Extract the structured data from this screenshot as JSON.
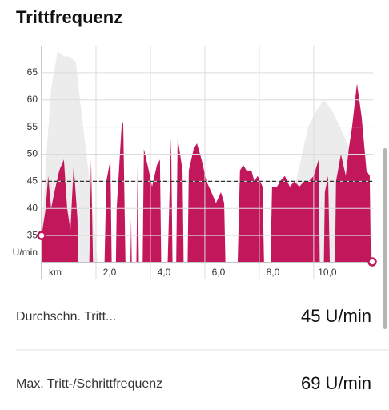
{
  "chart_data": {
    "type": "area",
    "title": "Trittfrequenz",
    "y_unit": "U/min",
    "average": 45,
    "xlim": [
      0,
      12.18
    ],
    "ylim": [
      30,
      70
    ],
    "xticks": [
      {
        "value": 0,
        "label": "km"
      },
      {
        "value": 2,
        "label": "2,0"
      },
      {
        "value": 4,
        "label": "4,0"
      },
      {
        "value": 6,
        "label": "6,0"
      },
      {
        "value": 8,
        "label": "8,0"
      },
      {
        "value": 10,
        "label": "10,0"
      }
    ],
    "yticks": [
      35,
      40,
      45,
      50,
      55,
      60,
      65
    ],
    "grid": true,
    "series": [
      {
        "color": "#ececec",
        "x": [
          0,
          0.18,
          0.35,
          0.59,
          0.82,
          1.0,
          1.26,
          1.41,
          1.65,
          1.88,
          2.06,
          8.91,
          9.35,
          9.79,
          10.09,
          10.38,
          10.68,
          10.97,
          11.41,
          11.94,
          12.18
        ],
        "values": [
          35,
          50,
          62,
          69,
          68,
          68,
          67,
          60,
          50,
          40,
          30,
          30,
          45,
          55,
          58,
          60,
          58,
          55,
          50,
          45,
          30
        ]
      },
      {
        "color": "#c2185b",
        "x": [
          0,
          0.15,
          0.24,
          0.35,
          0.47,
          0.65,
          0.82,
          0.94,
          1.06,
          1.18,
          1.32,
          1.41,
          1.65,
          1.82,
          2.0,
          2.18,
          2.38,
          2.53,
          2.65,
          2.76,
          2.94,
          3.0,
          3.18,
          3.29,
          3.41,
          3.53,
          3.65,
          3.76,
          3.94,
          4.06,
          4.24,
          4.35,
          4.47,
          4.76,
          4.88,
          5.0,
          5.18,
          5.29,
          5.41,
          5.59,
          5.71,
          5.88,
          6.06,
          6.24,
          6.41,
          6.59,
          6.71,
          6.88,
          7.06,
          7.29,
          7.41,
          7.53,
          7.71,
          7.82,
          7.94,
          8.12,
          8.29,
          8.47,
          8.65,
          8.76,
          8.94,
          9.12,
          9.29,
          9.47,
          9.65,
          9.82,
          10.0,
          10.18,
          10.29,
          10.41,
          10.53,
          10.71,
          10.82,
          11.0,
          11.18,
          11.29,
          11.41,
          11.59,
          11.76,
          11.94,
          12.06,
          12.18
        ],
        "values": [
          35,
          40,
          46,
          40,
          43,
          47,
          49,
          40,
          36,
          48,
          38,
          0,
          0,
          49,
          0,
          0,
          45,
          49,
          0,
          40,
          55,
          56,
          0,
          38,
          0,
          48,
          0,
          51,
          47,
          44,
          48,
          49,
          0,
          53,
          0,
          53,
          47,
          0,
          47,
          51,
          52,
          49,
          45,
          43,
          41,
          43,
          41,
          0,
          0,
          47,
          48,
          47,
          47,
          45,
          46,
          44,
          0,
          44,
          44,
          45,
          46,
          44,
          45,
          44,
          45,
          45,
          46,
          49,
          0,
          43,
          46,
          0,
          45,
          50,
          46,
          51,
          55,
          63,
          57,
          47,
          46,
          0
        ]
      }
    ]
  },
  "stats": [
    {
      "label": "Durchschn. Tritt...",
      "value": "45 U/min"
    },
    {
      "label": "Max. Tritt-/Schrittfrequenz",
      "value": "69 U/min"
    }
  ]
}
